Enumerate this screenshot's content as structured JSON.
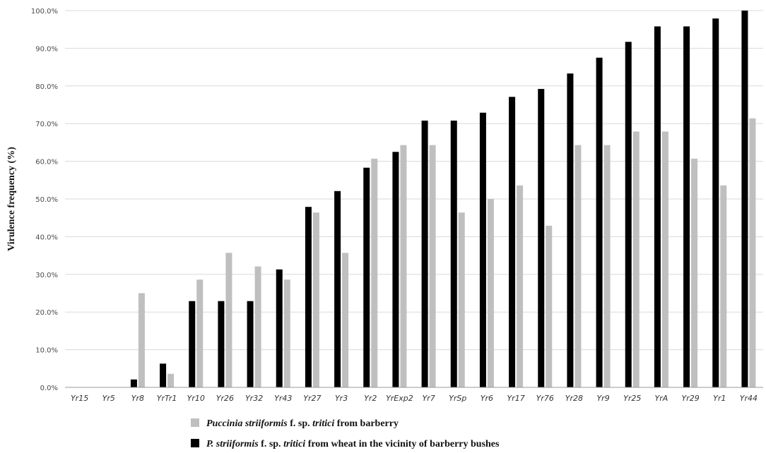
{
  "chart_data": {
    "type": "bar",
    "ylabel": "Virulence frequency (%)",
    "xlabel": "",
    "ylim": [
      0,
      100
    ],
    "yticks": [
      "0.0%",
      "10.0%",
      "20.0%",
      "30.0%",
      "40.0%",
      "50.0%",
      "60.0%",
      "70.0%",
      "80.0%",
      "90.0%",
      "100.0%"
    ],
    "grid": "horizontal",
    "legend_position": "bottom",
    "categories": [
      "Yr15",
      "Yr5",
      "Yr8",
      "YrTr1",
      "Yr10",
      "Yr26",
      "Yr32",
      "Yr43",
      "Yr27",
      "Yr3",
      "Yr2",
      "YrExp2",
      "Yr7",
      "YrSp",
      "Yr6",
      "Yr17",
      "Yr76",
      "Yr28",
      "Yr9",
      "Yr25",
      "YrA",
      "Yr29",
      "Yr1",
      "Yr44"
    ],
    "series": [
      {
        "legend": {
          "italic1": "P. striiformis",
          "mid": " f. sp. ",
          "italic2": "tritici",
          "rest": " from wheat in the vicinity of barberry bushes"
        },
        "color": "#000000",
        "values": [
          0,
          0,
          2.1,
          6.3,
          22.9,
          22.9,
          22.9,
          31.3,
          47.9,
          52.1,
          58.3,
          62.5,
          70.8,
          70.8,
          72.9,
          77.1,
          79.2,
          83.3,
          87.5,
          91.7,
          95.8,
          95.8,
          97.9,
          100
        ]
      },
      {
        "legend": {
          "italic1": "Puccinia striiformis",
          "mid": " f. sp. ",
          "italic2": "tritici",
          "rest": " from barberry"
        },
        "color": "#bfbfbf",
        "values": [
          0,
          0,
          25.0,
          3.6,
          28.6,
          35.7,
          32.1,
          28.6,
          46.4,
          35.7,
          60.7,
          64.3,
          64.3,
          46.4,
          50.0,
          53.6,
          42.9,
          64.3,
          64.3,
          67.9,
          67.9,
          60.7,
          53.6,
          71.4
        ]
      }
    ]
  }
}
